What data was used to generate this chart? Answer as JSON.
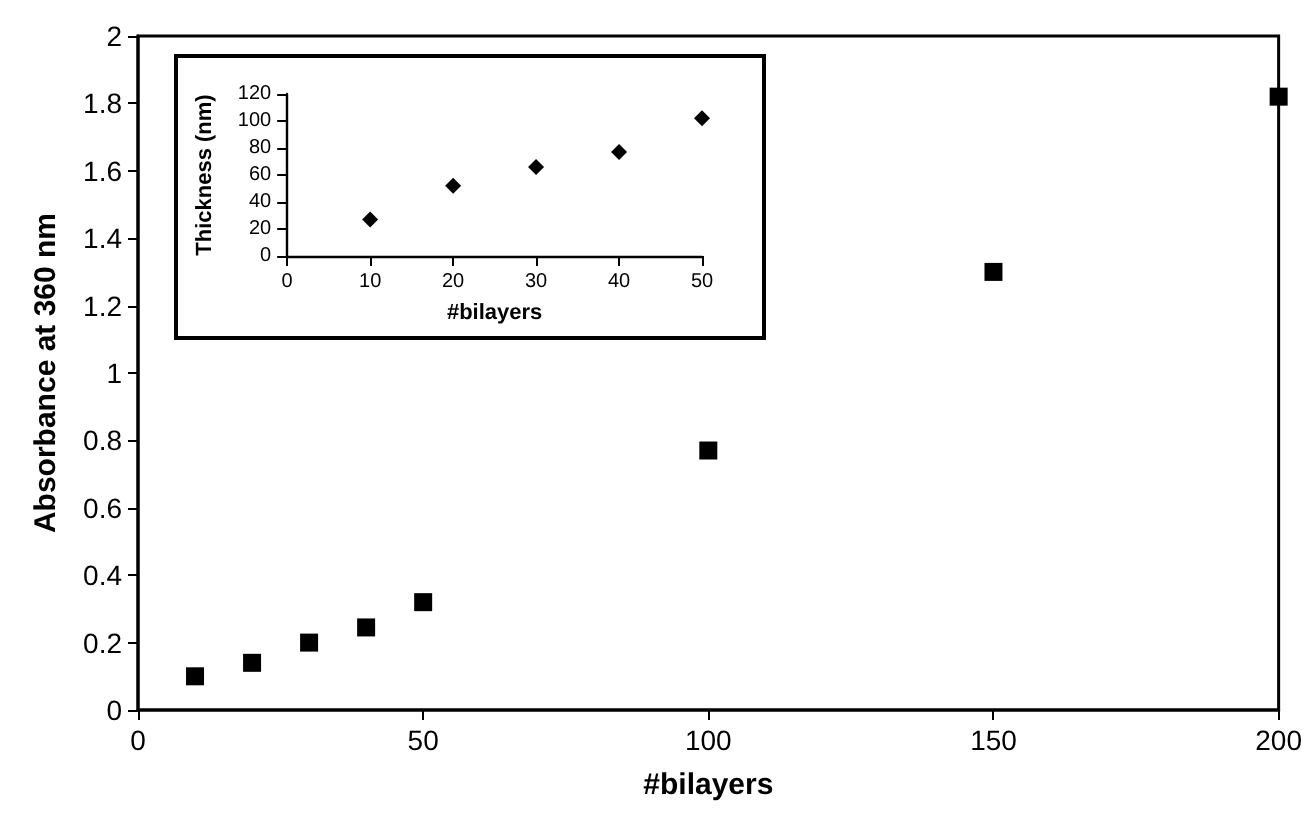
{
  "chart_data": [
    {
      "type": "scatter",
      "xlabel": "#bilayers",
      "ylabel": "Absorbance at 360 nm",
      "x": [
        10,
        20,
        30,
        40,
        50,
        100,
        150,
        200
      ],
      "series": [
        {
          "color": "#000000",
          "values": [
            0.1,
            0.14,
            0.2,
            0.245,
            0.32,
            0.77,
            1.3,
            1.82
          ]
        }
      ],
      "xlim": [
        0,
        200
      ],
      "xticks": [
        0,
        50,
        100,
        150,
        200
      ],
      "ylim": [
        0,
        2
      ],
      "yticks": [
        0,
        0.2,
        0.4,
        0.6,
        0.8,
        1,
        1.2,
        1.4,
        1.6,
        1.8,
        2
      ],
      "grid": false,
      "marker": "square"
    },
    {
      "type": "scatter",
      "xlabel": "#bilayers",
      "ylabel": "Thickness (nm)",
      "x": [
        10,
        20,
        30,
        40,
        50
      ],
      "series": [
        {
          "color": "#000000",
          "values": [
            27,
            52,
            66,
            77,
            102
          ]
        }
      ],
      "xlim": [
        0,
        50
      ],
      "xticks": [
        0,
        10,
        20,
        30,
        40,
        50
      ],
      "ylim": [
        0,
        120
      ],
      "yticks": [
        0,
        20,
        40,
        60,
        80,
        100,
        120
      ],
      "grid": false,
      "marker": "diamond"
    }
  ]
}
